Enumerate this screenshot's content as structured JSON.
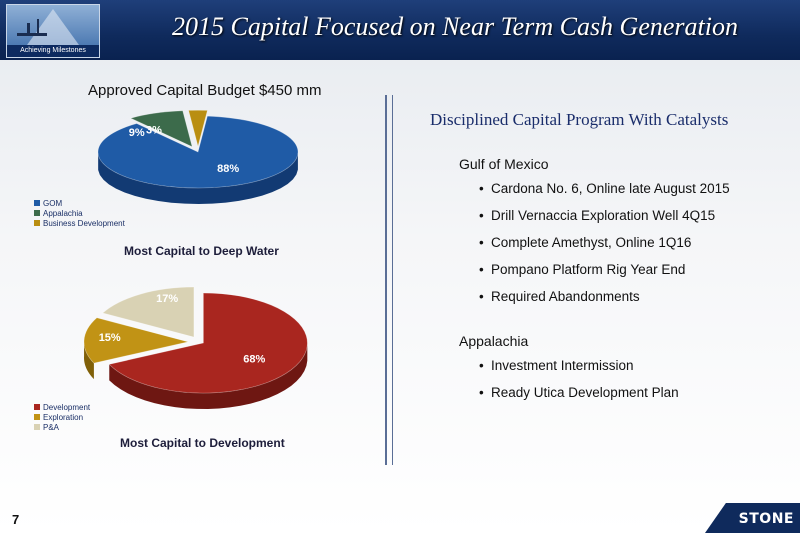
{
  "slide": {
    "title": "2015 Capital Focused on Near Term Cash Generation",
    "logo_tagline": "Achieving Milestones",
    "page_number": "7",
    "corner_logo": "STONE"
  },
  "chart_data": [
    {
      "type": "pie",
      "title": "Approved Capital Budget  $450 mm",
      "caption": "Most Capital to Deep Water",
      "categories": [
        "GOM",
        "Appalachia",
        "Business Development"
      ],
      "values": [
        88,
        9,
        3
      ],
      "value_labels": [
        "88%",
        "9%",
        "3%"
      ],
      "colors": [
        "#1f5ba6",
        "#3c6b4b",
        "#b98e12"
      ],
      "side_colors": [
        "#123a73",
        "#26452f",
        "#7c5e0a"
      ],
      "legend_position": "bottom-left"
    },
    {
      "type": "pie",
      "title": "",
      "caption": "Most Capital to Development",
      "categories": [
        "Development",
        "Exploration",
        "P&A"
      ],
      "values": [
        68,
        15,
        17
      ],
      "value_labels": [
        "68%",
        "15%",
        "17%"
      ],
      "colors": [
        "#a9261f",
        "#c19315",
        "#d9d2b4"
      ],
      "side_colors": [
        "#6e1712",
        "#806008",
        "#9f9880"
      ],
      "legend_position": "bottom-left"
    }
  ],
  "right_panel": {
    "heading": "Disciplined Capital Program With Catalysts",
    "sections": [
      {
        "title": "Gulf of Mexico",
        "items": [
          "Cardona No. 6, Online late August 2015",
          "Drill Vernaccia Exploration Well 4Q15",
          "Complete Amethyst, Online 1Q16",
          "Pompano Platform Rig Year End",
          "Required Abandonments"
        ]
      },
      {
        "title": "Appalachia",
        "items": [
          "Investment Intermission",
          "Ready Utica Development Plan"
        ]
      }
    ],
    "bullet": "•"
  }
}
